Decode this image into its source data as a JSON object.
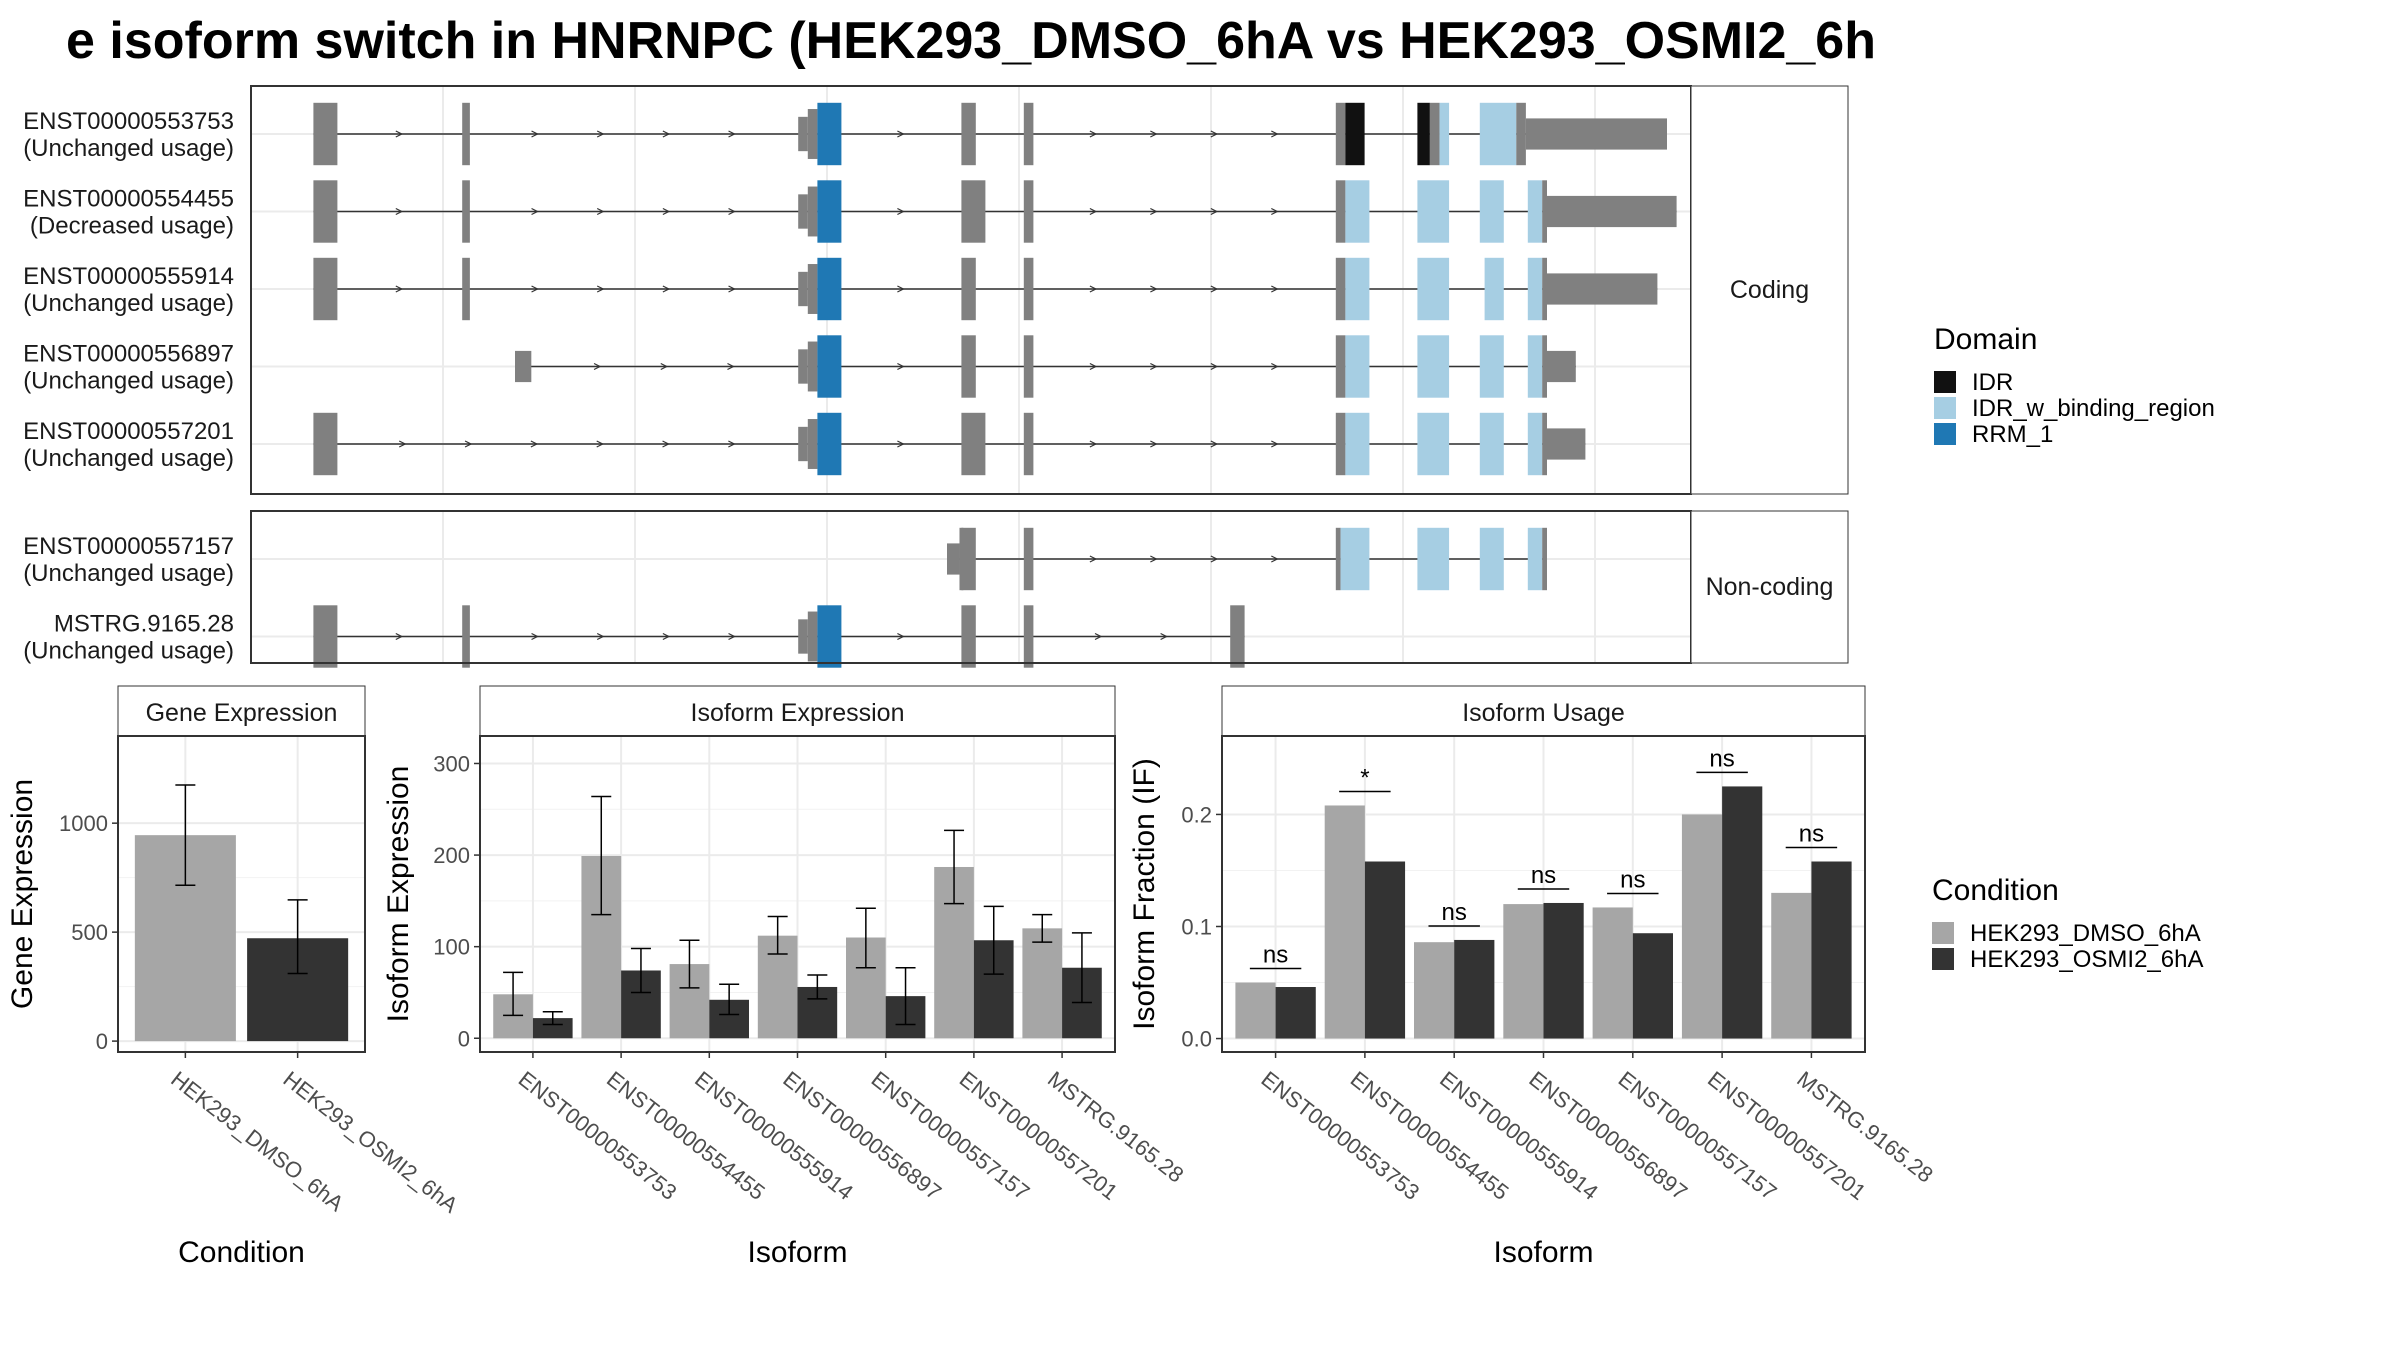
{
  "title": "e isoform switch in HNRNPC (HEK293_DMSO_6hA vs HEK293_OSMI2_6h",
  "colors": {
    "exon": "#808080",
    "IDR": "#111111",
    "IDR_w_binding_region": "#a6cee3",
    "RRM_1": "#1f78b4",
    "HEK293_DMSO_6hA": "#a6a6a6",
    "HEK293_OSMI2_6hA": "#333333"
  },
  "legend_domain": {
    "title": "Domain",
    "items": [
      {
        "label": "IDR",
        "color_key": "IDR"
      },
      {
        "label": "IDR_w_binding_region",
        "color_key": "IDR_w_binding_region"
      },
      {
        "label": "RRM_1",
        "color_key": "RRM_1"
      }
    ]
  },
  "legend_condition": {
    "title": "Condition",
    "items": [
      {
        "label": "HEK293_DMSO_6hA",
        "color_key": "HEK293_DMSO_6hA"
      },
      {
        "label": "HEK293_OSMI2_6hA",
        "color_key": "HEK293_OSMI2_6hA"
      }
    ]
  },
  "chart_data": [
    {
      "type": "transcript_structure",
      "genomic_xlim": [
        0,
        1500
      ],
      "exon_templates": {
        "e1": [
          [
            65,
            90
          ]
        ],
        "e2": [
          [
            220,
            228
          ]
        ],
        "e3": [
          [
            570,
            580,
            0.55
          ],
          [
            580,
            590,
            0.8
          ],
          [
            590,
            615,
            1,
            "RRM_1"
          ]
        ],
        "e4": [
          [
            740,
            755
          ]
        ],
        "e5": [
          [
            805,
            815
          ]
        ],
        "e6_ish": [
          [
            1130,
            1140
          ]
        ],
        "e7_ish": [
          [
            1215,
            1230
          ]
        ],
        "e8_ish": [
          [
            1280,
            1305
          ]
        ],
        "e9_ish": [
          [
            1330,
            1350
          ]
        ]
      },
      "panels": [
        {
          "label": "Coding",
          "transcripts": [
            {
              "id": "ENST00000553753",
              "usage": "(Unchanged usage)",
              "exons": [
                [
                  65,
                  90
                ],
                [
                  220,
                  228
                ],
                [
                  570,
                  580,
                  0.55
                ],
                [
                  580,
                  590,
                  0.8
                ],
                [
                  590,
                  615,
                  1,
                  "RRM_1"
                ],
                [
                  740,
                  755
                ],
                [
                  805,
                  815
                ],
                [
                  1130,
                  1140
                ],
                [
                  1140,
                  1160,
                  1,
                  "IDR"
                ],
                [
                  1215,
                  1228,
                  1,
                  "IDR"
                ],
                [
                  1228,
                  1238
                ],
                [
                  1238,
                  1248,
                  1,
                  "IDR_w_binding_region"
                ],
                [
                  1280,
                  1318,
                  1,
                  "IDR_w_binding_region"
                ],
                [
                  1318,
                  1328
                ],
                [
                  1328,
                  1475,
                  0.5
                ]
              ]
            },
            {
              "id": "ENST00000554455",
              "usage": "(Decreased usage)",
              "exons": [
                [
                  65,
                  90
                ],
                [
                  220,
                  228
                ],
                [
                  570,
                  580,
                  0.55
                ],
                [
                  580,
                  590,
                  0.8
                ],
                [
                  590,
                  615,
                  1,
                  "RRM_1"
                ],
                [
                  740,
                  765
                ],
                [
                  805,
                  815
                ],
                [
                  1130,
                  1140
                ],
                [
                  1140,
                  1165,
                  1,
                  "IDR_w_binding_region"
                ],
                [
                  1215,
                  1248,
                  1,
                  "IDR_w_binding_region"
                ],
                [
                  1280,
                  1305,
                  1,
                  "IDR_w_binding_region"
                ],
                [
                  1330,
                  1345,
                  1,
                  "IDR_w_binding_region"
                ],
                [
                  1345,
                  1350
                ],
                [
                  1350,
                  1485,
                  0.5
                ]
              ]
            },
            {
              "id": "ENST00000555914",
              "usage": "(Unchanged usage)",
              "exons": [
                [
                  65,
                  90
                ],
                [
                  220,
                  228
                ],
                [
                  570,
                  580,
                  0.55
                ],
                [
                  580,
                  590,
                  0.8
                ],
                [
                  590,
                  615,
                  1,
                  "RRM_1"
                ],
                [
                  740,
                  755
                ],
                [
                  805,
                  815
                ],
                [
                  1130,
                  1140
                ],
                [
                  1140,
                  1165,
                  1,
                  "IDR_w_binding_region"
                ],
                [
                  1215,
                  1248,
                  1,
                  "IDR_w_binding_region"
                ],
                [
                  1285,
                  1305,
                  1,
                  "IDR_w_binding_region"
                ],
                [
                  1330,
                  1345,
                  1,
                  "IDR_w_binding_region"
                ],
                [
                  1345,
                  1350
                ],
                [
                  1350,
                  1465,
                  0.5
                ]
              ]
            },
            {
              "id": "ENST00000556897",
              "usage": "(Unchanged usage)",
              "exons": [
                [
                  275,
                  292,
                  0.5
                ],
                [
                  570,
                  580,
                  0.55
                ],
                [
                  580,
                  590,
                  0.8
                ],
                [
                  590,
                  615,
                  1,
                  "RRM_1"
                ],
                [
                  740,
                  755
                ],
                [
                  805,
                  815
                ],
                [
                  1130,
                  1140
                ],
                [
                  1140,
                  1165,
                  1,
                  "IDR_w_binding_region"
                ],
                [
                  1215,
                  1248,
                  1,
                  "IDR_w_binding_region"
                ],
                [
                  1280,
                  1305,
                  1,
                  "IDR_w_binding_region"
                ],
                [
                  1330,
                  1345,
                  1,
                  "IDR_w_binding_region"
                ],
                [
                  1345,
                  1350
                ],
                [
                  1350,
                  1380,
                  0.5
                ]
              ]
            },
            {
              "id": "ENST00000557201",
              "usage": "(Unchanged usage)",
              "exons": [
                [
                  65,
                  90
                ],
                [
                  570,
                  580,
                  0.55
                ],
                [
                  580,
                  590,
                  0.8
                ],
                [
                  590,
                  615,
                  1,
                  "RRM_1"
                ],
                [
                  740,
                  765
                ],
                [
                  805,
                  815
                ],
                [
                  1130,
                  1140
                ],
                [
                  1140,
                  1165,
                  1,
                  "IDR_w_binding_region"
                ],
                [
                  1215,
                  1248,
                  1,
                  "IDR_w_binding_region"
                ],
                [
                  1280,
                  1305,
                  1,
                  "IDR_w_binding_region"
                ],
                [
                  1330,
                  1345,
                  1,
                  "IDR_w_binding_region"
                ],
                [
                  1345,
                  1350
                ],
                [
                  1350,
                  1390,
                  0.5
                ]
              ]
            }
          ]
        },
        {
          "label": "Non-coding",
          "transcripts": [
            {
              "id": "ENST00000557157",
              "usage": "(Unchanged usage)",
              "exons": [
                [
                  725,
                  738,
                  0.5
                ],
                [
                  738,
                  742
                ],
                [
                  740,
                  755
                ],
                [
                  805,
                  815
                ],
                [
                  1130,
                  1135
                ],
                [
                  1135,
                  1165,
                  1,
                  "IDR_w_binding_region"
                ],
                [
                  1215,
                  1248,
                  1,
                  "IDR_w_binding_region"
                ],
                [
                  1280,
                  1305,
                  1,
                  "IDR_w_binding_region"
                ],
                [
                  1330,
                  1345,
                  1,
                  "IDR_w_binding_region"
                ],
                [
                  1345,
                  1350
                ]
              ]
            },
            {
              "id": "MSTRG.9165.28",
              "usage": "(Unchanged usage)",
              "exons": [
                [
                  65,
                  90
                ],
                [
                  220,
                  228
                ],
                [
                  570,
                  580,
                  0.55
                ],
                [
                  580,
                  590,
                  0.8
                ],
                [
                  590,
                  615,
                  1,
                  "RRM_1"
                ],
                [
                  740,
                  755
                ],
                [
                  805,
                  815
                ],
                [
                  1020,
                  1035
                ]
              ]
            }
          ]
        }
      ]
    },
    {
      "type": "bar",
      "title": "Gene Expression",
      "xlabel": "Condition",
      "ylabel": "Gene Expression",
      "ylim": [
        -50,
        1400
      ],
      "yticks": [
        0,
        500,
        1000
      ],
      "categories": [
        "HEK293_DMSO_6hA",
        "HEK293_OSMI2_6hA"
      ],
      "values": [
        945,
        472
      ],
      "errors": [
        [
          715,
          1175
        ],
        [
          310,
          648
        ]
      ]
    },
    {
      "type": "bar",
      "title": "Isoform Expression",
      "xlabel": "Isoform",
      "ylabel": "Isoform Expression",
      "ylim": [
        -15,
        330
      ],
      "yticks": [
        0,
        100,
        200,
        300
      ],
      "categories": [
        "ENST00000553753",
        "ENST00000554455",
        "ENST00000555914",
        "ENST00000556897",
        "ENST00000557157",
        "ENST00000557201",
        "MSTRG.9165.28"
      ],
      "series": [
        {
          "name": "HEK293_DMSO_6hA",
          "values": [
            48,
            199,
            81,
            112,
            110,
            187,
            120
          ],
          "errors": [
            [
              25,
              72
            ],
            [
              135,
              264
            ],
            [
              55,
              107
            ],
            [
              92,
              133
            ],
            [
              77,
              142
            ],
            [
              147,
              227
            ],
            [
              105,
              135
            ]
          ]
        },
        {
          "name": "HEK293_OSMI2_6hA",
          "values": [
            22,
            74,
            42,
            56,
            46,
            107,
            77
          ],
          "errors": [
            [
              15,
              29
            ],
            [
              50,
              98
            ],
            [
              26,
              59
            ],
            [
              43,
              69
            ],
            [
              15,
              77
            ],
            [
              70,
              144
            ],
            [
              39,
              115
            ]
          ]
        }
      ]
    },
    {
      "type": "bar",
      "title": "Isoform Usage",
      "xlabel": "Isoform",
      "ylabel": "Isoform Fraction (IF)",
      "ylim": [
        -0.012,
        0.27
      ],
      "yticks": [
        0.0,
        0.1,
        0.2
      ],
      "ytick_labels": [
        "0.0",
        "0.1",
        "0.2"
      ],
      "categories": [
        "ENST00000553753",
        "ENST00000554455",
        "ENST00000555914",
        "ENST00000556897",
        "ENST00000557157",
        "ENST00000557201",
        "MSTRG.9165.28"
      ],
      "series": [
        {
          "name": "HEK293_DMSO_6hA",
          "values": [
            0.05,
            0.208,
            0.086,
            0.12,
            0.117,
            0.2,
            0.13
          ]
        },
        {
          "name": "HEK293_OSMI2_6hA",
          "values": [
            0.046,
            0.158,
            0.088,
            0.121,
            0.094,
            0.225,
            0.158
          ]
        }
      ],
      "significance": [
        "ns",
        "*",
        "ns",
        "ns",
        "ns",
        "ns",
        "ns"
      ]
    }
  ]
}
